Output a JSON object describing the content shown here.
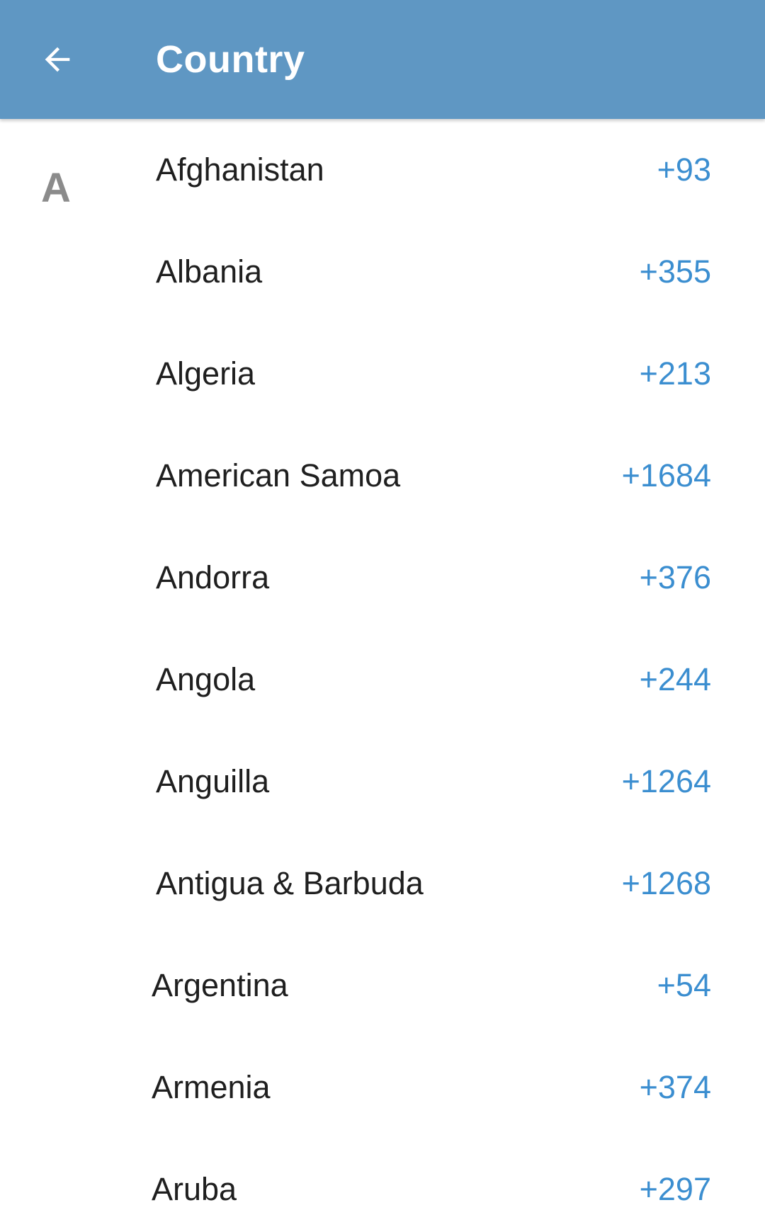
{
  "header": {
    "title": "Country",
    "back_icon": "arrow-left-icon"
  },
  "colors": {
    "header_background": "#5f97c3",
    "header_text": "#ffffff",
    "country_name_text": "#1f1f1f",
    "country_code_text": "#3b8ed0",
    "section_letter_text": "#8b8b8b"
  },
  "countries": {
    "section_letter": "A",
    "items": [
      {
        "name": "Afghanistan",
        "code": "+93"
      },
      {
        "name": "Albania",
        "code": "+355"
      },
      {
        "name": "Algeria",
        "code": "+213"
      },
      {
        "name": "American Samoa",
        "code": "+1684"
      },
      {
        "name": "Andorra",
        "code": "+376"
      },
      {
        "name": "Angola",
        "code": "+244"
      },
      {
        "name": "Anguilla",
        "code": "+1264"
      },
      {
        "name": "Antigua & Barbuda",
        "code": "+1268"
      },
      {
        "name": "Argentina",
        "code": "+54"
      },
      {
        "name": "Armenia",
        "code": "+374"
      },
      {
        "name": "Aruba",
        "code": "+297"
      }
    ]
  }
}
